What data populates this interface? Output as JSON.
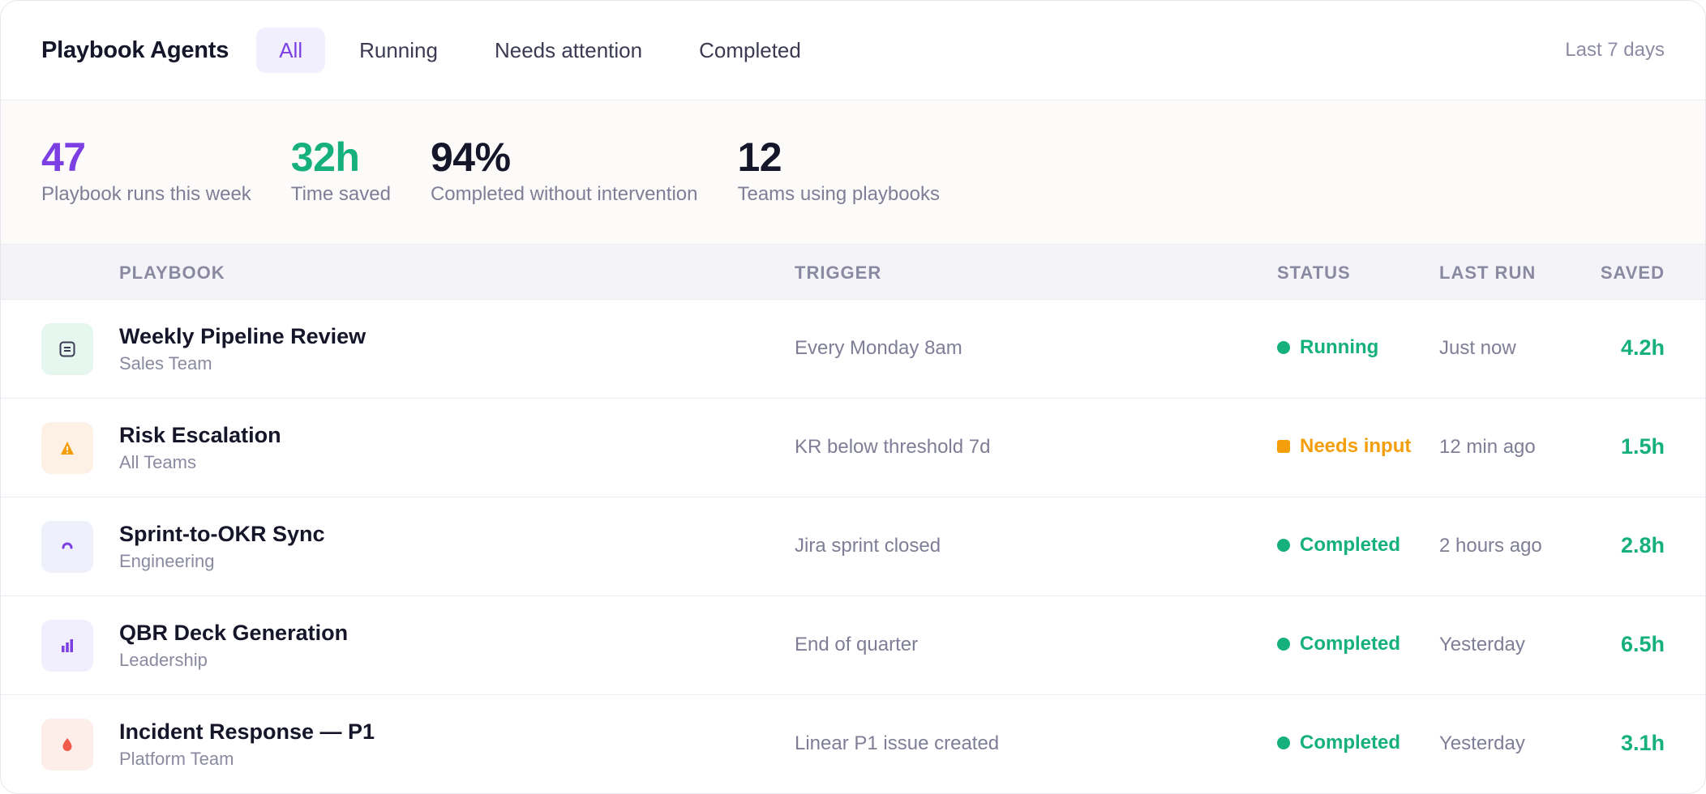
{
  "header": {
    "title": "Playbook Agents",
    "tabs": [
      {
        "label": "All",
        "active": true
      },
      {
        "label": "Running",
        "active": false
      },
      {
        "label": "Needs attention",
        "active": false
      },
      {
        "label": "Completed",
        "active": false
      }
    ],
    "range": "Last 7 days"
  },
  "stats": [
    {
      "value": "47",
      "label": "Playbook runs this week",
      "color": "#7b3fe4"
    },
    {
      "value": "32h",
      "label": "Time saved",
      "color": "#16b07c"
    },
    {
      "value": "94%",
      "label": "Completed without intervention",
      "color": "#16162a"
    },
    {
      "value": "12",
      "label": "Teams using playbooks",
      "color": "#16162a"
    }
  ],
  "table": {
    "columns": {
      "playbook": "PLAYBOOK",
      "trigger": "TRIGGER",
      "status": "STATUS",
      "last_run": "LAST RUN",
      "saved": "SAVED"
    },
    "rows": [
      {
        "icon": "document-icon",
        "icon_bg": "#e6f7f0",
        "icon_color": "#3a3a52",
        "name": "Weekly Pipeline Review",
        "team": "Sales Team",
        "trigger": "Every Monday 8am",
        "status": "Running",
        "status_color": "#16b07c",
        "status_shape": "circle",
        "last_run": "Just now",
        "saved": "4.2h"
      },
      {
        "icon": "warning-icon",
        "icon_bg": "#fdf1e6",
        "icon_color": "#f59e0b",
        "name": "Risk Escalation",
        "team": "All Teams",
        "trigger": "KR below threshold 7d",
        "status": "Needs input",
        "status_color": "#f59e0b",
        "status_shape": "square",
        "last_run": "12 min ago",
        "saved": "1.5h"
      },
      {
        "icon": "sync-icon",
        "icon_bg": "#eef0fb",
        "icon_color": "#7b3fe4",
        "name": "Sprint-to-OKR Sync",
        "team": "Engineering",
        "trigger": "Jira sprint closed",
        "status": "Completed",
        "status_color": "#16b07c",
        "status_shape": "circle",
        "last_run": "2 hours ago",
        "saved": "2.8h"
      },
      {
        "icon": "bar-chart-icon",
        "icon_bg": "#f1effd",
        "icon_color": "#7b3fe4",
        "name": "QBR Deck Generation",
        "team": "Leadership",
        "trigger": "End of quarter",
        "status": "Completed",
        "status_color": "#16b07c",
        "status_shape": "circle",
        "last_run": "Yesterday",
        "saved": "6.5h"
      },
      {
        "icon": "flame-icon",
        "icon_bg": "#fdeeea",
        "icon_color": "#ef5a4a",
        "name": "Incident Response — P1",
        "team": "Platform Team",
        "trigger": "Linear P1 issue created",
        "status": "Completed",
        "status_color": "#16b07c",
        "status_shape": "circle",
        "last_run": "Yesterday",
        "saved": "3.1h"
      }
    ]
  }
}
